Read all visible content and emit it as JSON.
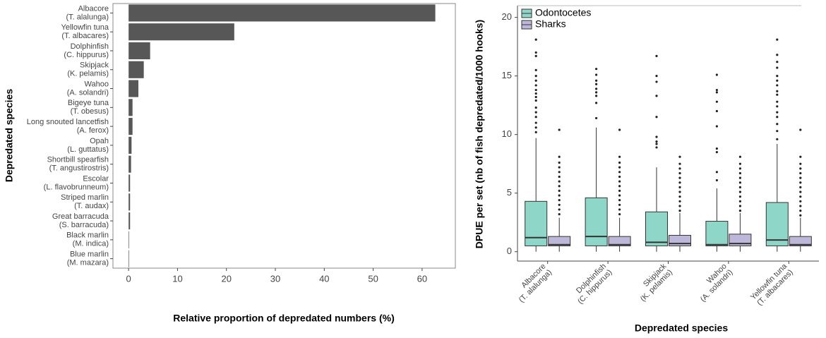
{
  "chart_data": [
    {
      "type": "hbar",
      "y_label": "Depredated species",
      "x_label": "Relative proportion of depredated numbers (%)",
      "categories": [
        [
          "Albacore",
          "(T. alalunga)"
        ],
        [
          "Yellowfin tuna",
          "(T. albacares)"
        ],
        [
          "Dolphinfish",
          "(C. hippurus)"
        ],
        [
          "Skipjack",
          "(K. pelamis)"
        ],
        [
          "Wahoo",
          "(A. solandri)"
        ],
        [
          "Bigeye tuna",
          "(T. obesus)"
        ],
        [
          "Long snouted lancetfish",
          "(A. ferox)"
        ],
        [
          "Opah",
          "(L. guttatus)"
        ],
        [
          "Shortbill spearfish",
          "(T. angustirostris)"
        ],
        [
          "Escolar",
          "(L. flavobrunneum)"
        ],
        [
          "Striped marlin",
          "(T. audax)"
        ],
        [
          "Great barracuda",
          "(S. barracuda)"
        ],
        [
          "Black marlin",
          "(M. indica)"
        ],
        [
          "Blue marlin",
          "(M. mazara)"
        ]
      ],
      "values": [
        62.7,
        21.6,
        4.4,
        3.1,
        2.0,
        0.8,
        0.8,
        0.6,
        0.5,
        0.3,
        0.3,
        0.3,
        0.1,
        0.1
      ],
      "color": "#575757",
      "xlim": [
        -3.2,
        66.8
      ],
      "xticks": [
        0,
        10,
        20,
        30,
        40,
        50,
        60
      ]
    },
    {
      "type": "box",
      "x_label": "Depredated species",
      "y_label": "DPUE per set (nb of fish depredated/1000 hooks)",
      "categories": [
        [
          "Albacore",
          "(T. alalunga)"
        ],
        [
          "Dolphinfish",
          "(C. hippurus)"
        ],
        [
          "Skipjack",
          "(K. pelamis)"
        ],
        [
          "Wahoo",
          "(A. solandri)"
        ],
        [
          "Yellowfin tuna",
          "(T. albacares)"
        ]
      ],
      "ylim": [
        -0.8,
        21
      ],
      "yticks": [
        0,
        5,
        10,
        15,
        20
      ],
      "legend": "top-left",
      "series": [
        {
          "name": "Odontocetes",
          "color": "#8dd6c8",
          "low": [
            0,
            0,
            0,
            0,
            0
          ],
          "q1": [
            0.5,
            0.5,
            0.5,
            0.5,
            0.5
          ],
          "median": [
            1.2,
            1.3,
            0.8,
            0.6,
            1.0
          ],
          "q3": [
            4.3,
            4.6,
            3.4,
            2.6,
            4.2
          ],
          "high": [
            9.7,
            10.6,
            7.2,
            5.4,
            9.2
          ],
          "outliers": [
            [
              10.2,
              10.6,
              11,
              11.5,
              11.9,
              12.3,
              12.9,
              13.2,
              13.5,
              13.8,
              14.2,
              14.6,
              15,
              15.5,
              16.7,
              17,
              18.1
            ],
            [
              11.4,
              12.7,
              13.3,
              13.6,
              13.9,
              14.3,
              14.6,
              15.1,
              15.6
            ],
            [
              8.9,
              9.2,
              9.4,
              9.8,
              11.5,
              13.3,
              14.5,
              15,
              16.7
            ],
            [
              6.1,
              6.8,
              8.5,
              8.8,
              10.7,
              12,
              12.8,
              13.6,
              13.8,
              15.1
            ],
            [
              9.6,
              10.3,
              10.9,
              11.5,
              11.9,
              12.4,
              12.8,
              13.4,
              13.7,
              14.2,
              14.6,
              15,
              15.7,
              16.2,
              16.8,
              18.1
            ]
          ]
        },
        {
          "name": "Sharks",
          "color": "#bdb8da",
          "low": [
            0,
            0,
            0,
            0,
            0
          ],
          "q1": [
            0.5,
            0.5,
            0.5,
            0.5,
            0.5
          ],
          "median": [
            0.6,
            0.6,
            0.7,
            0.7,
            0.6
          ],
          "q3": [
            1.3,
            1.3,
            1.4,
            1.5,
            1.3
          ],
          "high": [
            2.9,
            2.9,
            3.3,
            3.3,
            2.9
          ],
          "outliers": [
            [
              3.2,
              3.6,
              4,
              4.4,
              4.8,
              5.2,
              5.6,
              6,
              6.4,
              6.8,
              7.2,
              7.6,
              8.1,
              10.4
            ],
            [
              3.2,
              3.6,
              4,
              4.4,
              4.8,
              5.2,
              5.6,
              6,
              6.4,
              6.8,
              7.2,
              7.6,
              8.1,
              10.4
            ],
            [
              3.5,
              3.9,
              4.3,
              4.7,
              5.1,
              5.5,
              5.9,
              6.3,
              6.7,
              7.1,
              7.5,
              8.1
            ],
            [
              3.5,
              3.9,
              4.3,
              4.7,
              5.1,
              5.5,
              5.9,
              6.3,
              6.7,
              7.1,
              7.5,
              8.1
            ],
            [
              3.1,
              3.5,
              3.9,
              4.3,
              4.7,
              5.1,
              5.5,
              5.9,
              6.3,
              6.7,
              7.1,
              7.5,
              8.1,
              10.4
            ]
          ]
        }
      ]
    }
  ]
}
